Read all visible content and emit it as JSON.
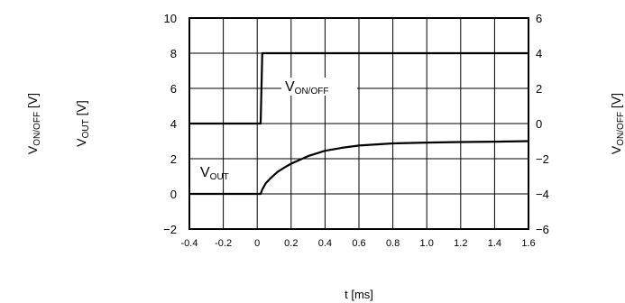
{
  "chart_data": {
    "type": "line",
    "xlabel": "t [ms]",
    "ylabel_left_outer": "VON/OFF [V]",
    "ylabel_left_inner": "VOUT [V]",
    "ylabel_right": "VON/OFF [V]",
    "x_ticks": [
      "-0.4",
      "-0.2",
      "0",
      "0.2",
      "0.4",
      "0.6",
      "0.8",
      "1.0",
      "1.2",
      "1.4",
      "1.6"
    ],
    "y_left_ticks": [
      "10",
      "8",
      "6",
      "4",
      "2",
      "0",
      "−2"
    ],
    "y_right_ticks": [
      "6",
      "4",
      "2",
      "0",
      "−2",
      "−4",
      "−6"
    ],
    "xlim": [
      -0.4,
      1.6
    ],
    "ylim_left": [
      -2,
      10
    ],
    "ylim_right": [
      -6,
      6
    ],
    "grid": true,
    "series": [
      {
        "name": "VON/OFF",
        "axis": "right",
        "x": [
          -0.4,
          0.02,
          0.03,
          1.6
        ],
        "y": [
          0,
          0,
          4,
          4
        ]
      },
      {
        "name": "VOUT",
        "axis": "left",
        "x": [
          -0.4,
          0.02,
          0.03,
          0.05,
          0.08,
          0.12,
          0.16,
          0.2,
          0.3,
          0.4,
          0.5,
          0.6,
          0.8,
          1.0,
          1.2,
          1.4,
          1.6
        ],
        "y": [
          0,
          0,
          0.25,
          0.6,
          0.9,
          1.25,
          1.5,
          1.72,
          2.15,
          2.45,
          2.62,
          2.75,
          2.87,
          2.92,
          2.95,
          2.97,
          3.0
        ]
      }
    ],
    "annotations": {
      "von_label": "VON/OFF",
      "vout_label": "VOUT"
    }
  }
}
